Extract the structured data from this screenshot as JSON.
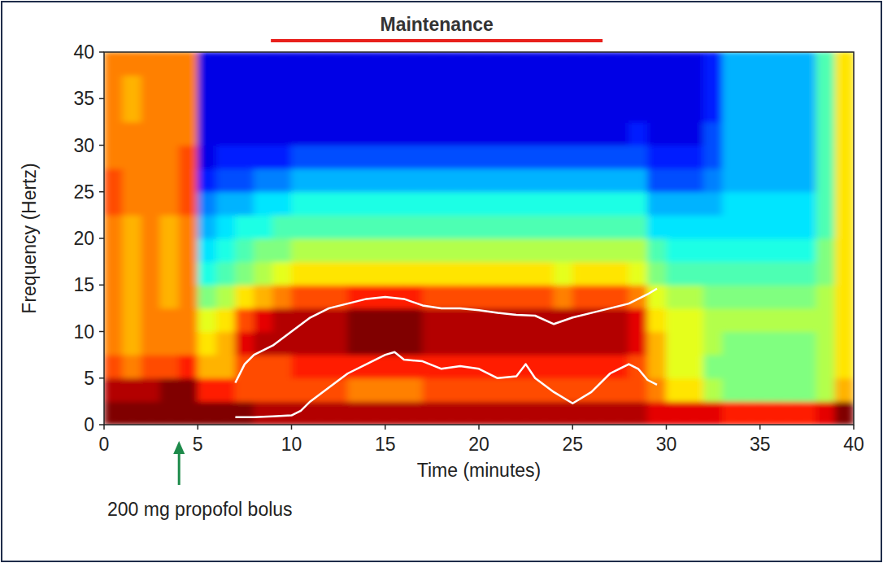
{
  "chart_data": {
    "type": "heatmap",
    "x_label": "Time (minutes)",
    "y_label": "Frequency (Hertz)",
    "xlim": [
      0,
      40
    ],
    "ylim": [
      0,
      40
    ],
    "xticks": [
      0,
      5,
      10,
      15,
      20,
      25,
      30,
      35,
      40
    ],
    "yticks": [
      0,
      5,
      10,
      15,
      20,
      25,
      30,
      35,
      40
    ],
    "color": "jet",
    "color_range": [
      0,
      10
    ],
    "x_bins": [
      0,
      1,
      2,
      3,
      4,
      5,
      6,
      7,
      8,
      9,
      10,
      11,
      12,
      13,
      14,
      15,
      16,
      17,
      18,
      19,
      20,
      21,
      22,
      23,
      24,
      25,
      26,
      27,
      28,
      29,
      30,
      31,
      32,
      33,
      34,
      35,
      36,
      37,
      38,
      39,
      40
    ],
    "y_bins": [
      0,
      2.5,
      5,
      7.5,
      10,
      12.5,
      15,
      17.5,
      20,
      22.5,
      25,
      27.5,
      30,
      32.5,
      35,
      37.5,
      40
    ],
    "cells": [
      [
        10,
        9.5,
        8,
        7.5,
        7.5,
        7.5,
        7.5,
        7.5,
        7.5,
        8,
        8,
        7.5,
        7.5,
        7.5,
        7.5,
        7.5
      ],
      [
        10,
        9.5,
        7.5,
        7,
        7,
        7,
        7,
        7,
        7,
        7.5,
        7.5,
        7.5,
        7.5,
        7,
        7,
        7.5
      ],
      [
        10,
        9.5,
        8,
        7.5,
        7.5,
        7.5,
        7.5,
        7.5,
        7.5,
        7.5,
        7.5,
        7.5,
        7.5,
        7.5,
        7.5,
        7.5
      ],
      [
        10,
        10,
        8,
        7.5,
        7.5,
        7,
        7,
        7,
        7,
        7.5,
        7.5,
        7.5,
        7.5,
        7.5,
        7.5,
        7.5
      ],
      [
        10,
        10,
        8.5,
        7.5,
        7.5,
        7.5,
        7.5,
        7.5,
        7.5,
        8,
        8,
        8,
        7.5,
        7.5,
        7.5,
        7.5
      ],
      [
        10,
        8.5,
        7,
        6.5,
        6,
        5,
        4,
        3.5,
        3,
        2.5,
        1.5,
        1,
        1,
        1,
        1,
        1
      ],
      [
        10,
        8.5,
        7,
        7,
        6.5,
        5.5,
        4.5,
        4,
        3.5,
        3,
        2,
        1.5,
        1,
        1,
        1,
        1
      ],
      [
        10,
        8,
        8,
        9,
        8,
        6.5,
        5,
        4.5,
        4,
        3,
        2,
        1.5,
        1,
        1,
        1,
        1
      ],
      [
        9.5,
        8,
        8,
        9.5,
        9,
        7,
        5.5,
        5,
        4,
        3.5,
        2.5,
        1.5,
        1,
        1,
        1,
        1
      ],
      [
        9.5,
        8,
        8,
        9.5,
        9.5,
        7.5,
        6,
        5,
        4.5,
        3.5,
        2.5,
        1.5,
        1,
        1,
        1,
        1
      ],
      [
        9.5,
        8,
        8.5,
        9.5,
        9.5,
        8,
        6.5,
        5.5,
        4.5,
        4,
        3,
        2,
        1,
        1,
        1,
        1
      ],
      [
        9.5,
        8,
        8.5,
        9.5,
        9.5,
        8,
        6.5,
        5.5,
        4.5,
        4,
        3,
        2,
        1,
        1,
        1,
        1
      ],
      [
        9.5,
        8,
        8.5,
        9.5,
        9.5,
        8,
        6.5,
        5.5,
        4.5,
        4,
        3,
        2,
        1,
        1,
        1,
        1
      ],
      [
        9.5,
        7.5,
        8.5,
        10,
        10,
        8.5,
        6.5,
        5.5,
        4.5,
        4,
        3,
        2,
        1,
        1,
        1,
        1
      ],
      [
        9.5,
        7.5,
        8.5,
        10,
        10,
        8.5,
        6.5,
        5.5,
        4.5,
        4,
        3,
        2,
        1,
        1,
        1,
        1
      ],
      [
        9.5,
        7.5,
        8.5,
        10,
        10,
        8.5,
        6.5,
        5.5,
        4.5,
        4,
        3,
        2,
        1,
        1,
        1,
        1
      ],
      [
        9.5,
        7.5,
        8.5,
        10,
        10,
        8.5,
        6.5,
        5.5,
        4.5,
        4,
        3,
        2,
        1,
        1,
        1,
        1
      ],
      [
        9.5,
        8,
        8.5,
        9.5,
        9.5,
        8,
        6.5,
        5.5,
        4.5,
        4,
        3,
        2,
        1,
        1,
        1,
        1
      ],
      [
        9.5,
        8,
        8.5,
        9.5,
        9.5,
        8,
        6.5,
        5.5,
        4.5,
        4,
        3,
        2,
        1,
        1,
        1,
        1
      ],
      [
        9.5,
        8,
        8.5,
        9.5,
        9.5,
        8,
        6.5,
        5.5,
        4.5,
        4,
        3,
        2,
        1,
        1,
        1,
        1
      ],
      [
        9.5,
        8,
        8.5,
        9.5,
        9.5,
        8,
        6.5,
        5.5,
        4.5,
        4,
        3,
        2,
        1,
        1,
        1,
        1
      ],
      [
        9.5,
        8,
        8.5,
        9.5,
        9.5,
        8,
        6.5,
        5.5,
        4.5,
        4,
        3,
        2,
        1,
        1,
        1,
        1
      ],
      [
        9.5,
        8,
        8.5,
        9.5,
        9.5,
        8,
        6.5,
        5.5,
        4.5,
        4,
        3,
        2,
        1,
        1,
        1,
        1
      ],
      [
        9.5,
        8,
        8.5,
        9.5,
        9.5,
        8,
        6.5,
        5.5,
        4.5,
        4,
        3,
        2,
        1,
        1,
        1,
        1
      ],
      [
        9.5,
        8,
        8.5,
        9.5,
        9.5,
        7.5,
        6,
        5.5,
        4.5,
        4,
        3,
        2,
        1,
        1,
        1,
        1
      ],
      [
        9.5,
        8,
        8.5,
        9.5,
        9.5,
        8,
        6.5,
        5.5,
        4.5,
        4,
        3,
        2,
        1,
        1,
        1,
        1
      ],
      [
        9.5,
        8,
        8.5,
        9.5,
        9.5,
        8,
        6.5,
        5.5,
        4.5,
        4,
        3,
        2,
        1,
        1,
        1,
        1
      ],
      [
        9.5,
        8,
        8.5,
        9.5,
        9.5,
        8,
        6.5,
        5.5,
        4.5,
        4,
        3,
        2,
        1,
        1,
        1,
        1
      ],
      [
        9.5,
        8,
        8,
        9,
        9,
        7.5,
        6,
        5.5,
        4.5,
        4,
        3,
        2,
        1.5,
        1,
        1,
        1
      ],
      [
        9,
        7.5,
        7,
        7,
        6.5,
        6,
        5,
        4.5,
        3.5,
        3,
        2,
        1.5,
        1,
        1,
        1,
        1
      ],
      [
        9,
        6.5,
        6,
        6,
        6,
        5.5,
        4.5,
        4,
        3.5,
        3,
        2,
        1.5,
        1,
        1,
        1,
        1
      ],
      [
        9,
        6.5,
        6,
        6,
        6,
        5.5,
        4.5,
        4,
        3.5,
        3,
        2,
        1.5,
        1,
        1,
        1,
        1
      ],
      [
        9,
        5.5,
        5,
        5.5,
        5.5,
        5,
        4.5,
        4,
        3.5,
        3,
        2.5,
        2,
        2,
        1.5,
        1.5,
        1.5
      ],
      [
        8.5,
        5,
        5,
        5,
        5.5,
        5,
        4.5,
        4,
        3.5,
        3.5,
        3,
        3,
        3,
        3,
        3,
        3
      ],
      [
        8.5,
        5,
        5,
        5,
        5.5,
        5,
        4.5,
        4,
        3.5,
        3.5,
        3,
        3,
        3,
        3,
        3,
        3
      ],
      [
        8.5,
        5,
        5,
        5,
        5.5,
        5,
        4.5,
        4,
        3.5,
        3.5,
        3,
        3,
        3,
        3,
        3,
        3
      ],
      [
        8.5,
        5,
        5,
        5,
        5.5,
        5,
        4.5,
        4,
        3.5,
        3.5,
        3,
        3,
        3,
        3,
        3,
        3
      ],
      [
        8.5,
        5,
        5,
        5,
        5.5,
        5,
        4.5,
        4,
        3.5,
        3.5,
        3,
        3,
        3,
        3,
        3,
        3
      ],
      [
        9,
        5.5,
        5.5,
        5.5,
        5.5,
        5.5,
        5,
        5,
        4.5,
        4.5,
        4.5,
        4.5,
        4.5,
        4.5,
        4.5,
        4.5
      ],
      [
        10,
        7,
        6.5,
        6.5,
        6.5,
        6.5,
        6.5,
        6.5,
        6.5,
        6.5,
        6.5,
        6.5,
        6.5,
        6.5,
        6.5,
        6.5
      ]
    ],
    "series": [
      {
        "color": "#ffffff",
        "x": [
          7,
          7.5,
          8,
          9,
          10,
          11,
          12,
          13,
          14,
          15,
          16,
          17,
          18,
          19,
          20,
          21,
          22,
          23,
          24,
          25,
          26,
          27,
          28,
          29,
          29.5
        ],
        "values": [
          4.5,
          6.5,
          7.5,
          8.5,
          10,
          11.5,
          12.5,
          13,
          13.5,
          13.7,
          13.5,
          12.8,
          12.5,
          12.5,
          12.3,
          12,
          11.8,
          11.7,
          10.8,
          11.5,
          12,
          12.5,
          13,
          14,
          14.6
        ]
      },
      {
        "color": "#ffffff",
        "x": [
          7,
          8,
          9,
          10,
          10.5,
          11,
          12,
          13,
          14,
          15,
          15.5,
          16,
          17,
          18,
          19,
          20,
          21,
          22,
          22.5,
          23,
          24,
          25,
          26,
          27,
          28,
          28.5,
          29,
          29.5
        ],
        "values": [
          0.8,
          0.8,
          0.9,
          1,
          1.5,
          2.5,
          4,
          5.5,
          6.5,
          7.5,
          7.8,
          7,
          6.8,
          6,
          6.3,
          6,
          5,
          5.2,
          6.5,
          5,
          3.5,
          2.3,
          3.5,
          5.5,
          6.5,
          6,
          4.8,
          4.3
        ]
      }
    ],
    "annotations": [
      {
        "text": "Maintenance",
        "x_start": 8.9,
        "x_end": 26.6,
        "color": "#e8201c"
      },
      {
        "text": "200 mg propofol bolus",
        "x": 4,
        "color": "#1d8a4a"
      }
    ]
  }
}
